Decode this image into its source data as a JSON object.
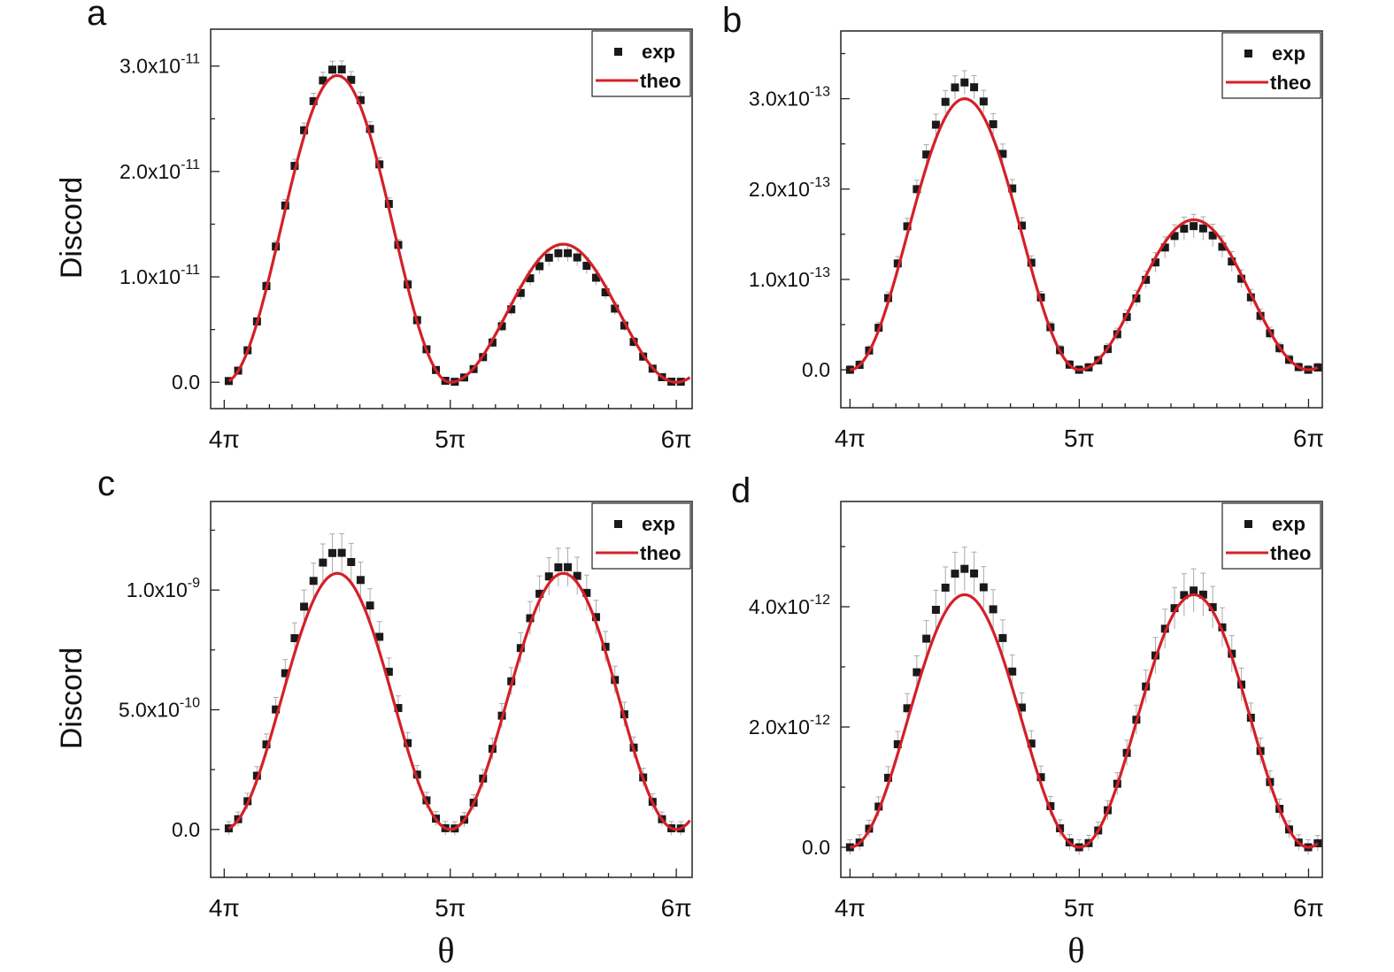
{
  "figure": {
    "xlabel": "θ",
    "ylabel": "Discord"
  },
  "colors": {
    "experiment": "#1a1a1a",
    "theory": "#d42027",
    "errorbar": "#aaaaaa",
    "axis": "#222222"
  },
  "chart_data": [
    {
      "type": "scatter",
      "panel": "a",
      "panel_label": "a",
      "xlabel": "",
      "ylabel": "Discord",
      "x_unit": "π",
      "xlim": [
        3.94,
        6.07
      ],
      "ylim": [
        -0.25,
        3.35
      ],
      "y_scale": "1e-11",
      "xticks": [
        4,
        5,
        6
      ],
      "xtick_labels": [
        "4π",
        "5π",
        "6π"
      ],
      "yticks": [
        0.0,
        1.0,
        2.0,
        3.0
      ],
      "ytick_labels": [
        "0.0",
        "1.0x10",
        "2.0x10",
        "3.0x10"
      ],
      "ytick_exponents": [
        "",
        "-11",
        "-11",
        "-11"
      ],
      "legend": {
        "position": "top-right",
        "entries": [
          "exp",
          "theo"
        ]
      },
      "series": [
        {
          "name": "exp",
          "style": "squares",
          "amp1": 2.98,
          "amp2": 1.23,
          "x_start": 4.02,
          "x_end": 6.02,
          "n": 49,
          "error": 0.08
        },
        {
          "name": "theo",
          "style": "line",
          "amp1": 2.91,
          "amp2": 1.31,
          "x_start": 4.02,
          "x_end": 6.06
        }
      ]
    },
    {
      "type": "scatter",
      "panel": "b",
      "panel_label": "b",
      "xlabel": "",
      "ylabel": "",
      "x_unit": "π",
      "xlim": [
        3.96,
        6.06
      ],
      "ylim": [
        -0.42,
        3.75
      ],
      "y_scale": "1e-13",
      "xticks": [
        4,
        5,
        6
      ],
      "xtick_labels": [
        "4π",
        "5π",
        "6π"
      ],
      "yticks": [
        0.0,
        1.0,
        2.0,
        3.0
      ],
      "ytick_labels": [
        "0.0",
        "1.0x10",
        "2.0x10",
        "3.0x10"
      ],
      "ytick_exponents": [
        "",
        "-13",
        "-13",
        "-13"
      ],
      "legend": {
        "position": "top-right",
        "entries": [
          "exp",
          "theo"
        ]
      },
      "series": [
        {
          "name": "exp",
          "style": "squares",
          "amp1": 3.18,
          "amp2": 1.59,
          "x_start": 4.0,
          "x_end": 6.04,
          "n": 50,
          "error": 0.13
        },
        {
          "name": "theo",
          "style": "line",
          "amp1": 3.0,
          "amp2": 1.66,
          "x_start": 4.0,
          "x_end": 6.04
        }
      ]
    },
    {
      "type": "scatter",
      "panel": "c",
      "panel_label": "c",
      "xlabel": "θ",
      "ylabel": "Discord",
      "x_unit": "π",
      "xlim": [
        3.94,
        6.07
      ],
      "ylim": [
        -0.2,
        1.37
      ],
      "y_scale": "1e-9",
      "xticks": [
        4,
        5,
        6
      ],
      "xtick_labels": [
        "4π",
        "5π",
        "6π"
      ],
      "yticks": [
        0.0,
        0.5,
        1.0
      ],
      "ytick_labels": [
        "0.0",
        "5.0x10",
        "1.0x10"
      ],
      "ytick_exponents": [
        "",
        "-10",
        "-9"
      ],
      "legend": {
        "position": "top-right",
        "entries": [
          "exp",
          "theo"
        ]
      },
      "series": [
        {
          "name": "exp",
          "style": "squares",
          "amp1": 1.16,
          "amp2": 1.1,
          "x_start": 4.02,
          "x_end": 6.02,
          "n": 49,
          "error": 0.08
        },
        {
          "name": "theo",
          "style": "line",
          "amp1": 1.07,
          "amp2": 1.07,
          "x_start": 4.02,
          "x_end": 6.06
        }
      ]
    },
    {
      "type": "scatter",
      "panel": "d",
      "panel_label": "d",
      "xlabel": "θ",
      "ylabel": "",
      "x_unit": "π",
      "xlim": [
        3.96,
        6.06
      ],
      "ylim": [
        -0.5,
        5.75
      ],
      "y_scale": "1e-12",
      "xticks": [
        4,
        5,
        6
      ],
      "xtick_labels": [
        "4π",
        "5π",
        "6π"
      ],
      "yticks": [
        0.0,
        2.0,
        4.0
      ],
      "ytick_labels": [
        "0.0",
        "2.0x10",
        "4.0x10"
      ],
      "ytick_exponents": [
        "",
        "-12",
        "-12"
      ],
      "legend": {
        "position": "top-right",
        "entries": [
          "exp",
          "theo"
        ]
      },
      "series": [
        {
          "name": "exp",
          "style": "squares",
          "amp1": 4.63,
          "amp2": 4.27,
          "x_start": 4.0,
          "x_end": 6.04,
          "n": 50,
          "error": 0.36
        },
        {
          "name": "theo",
          "style": "line",
          "amp1": 4.2,
          "amp2": 4.2,
          "x_start": 4.0,
          "x_end": 6.04
        }
      ]
    }
  ]
}
